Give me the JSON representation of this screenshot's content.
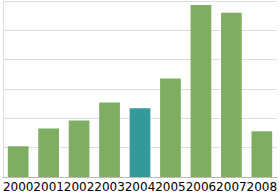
{
  "chart_data": {
    "type": "bar",
    "categories": [
      "2000",
      "2001",
      "2002",
      "2003",
      "2004",
      "2005",
      "2006",
      "2007",
      "2008"
    ],
    "values": [
      1.05,
      1.65,
      1.93,
      2.54,
      2.34,
      3.36,
      5.86,
      5.6,
      1.56
    ],
    "colors": [
      "#7fae62",
      "#7fae62",
      "#7fae62",
      "#7fae62",
      "#33999a",
      "#7fae62",
      "#7fae62",
      "#7fae62",
      "#7fae62"
    ],
    "ylim": [
      0,
      6
    ],
    "yticks": [
      0,
      1,
      2,
      3,
      4,
      5,
      6
    ],
    "grid": true,
    "tick_labels": "x"
  }
}
